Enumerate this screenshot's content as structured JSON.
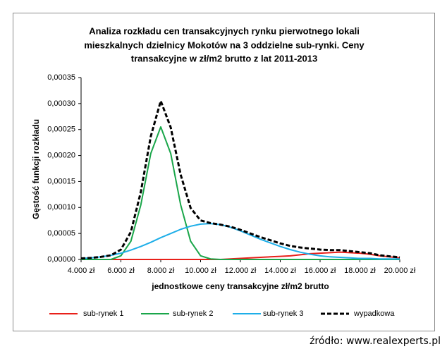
{
  "chart_data": {
    "type": "line",
    "title": [
      "Analiza rozkładu cen transakcyjnych  rynku pierwotnego lokali",
      "mieszkalnych dzielnicy Mokotów na 3 oddzielne sub-rynki. Ceny",
      "transakcyjne  w zł/m2 brutto z lat 2011-2013"
    ],
    "x_label": "jednostkowe ceny transakcyjne zł/m2 brutto",
    "y_label": "Gęstość funkcji rozkładu",
    "x": [
      4000,
      4500,
      5000,
      5500,
      6000,
      6500,
      7000,
      7500,
      8000,
      8500,
      9000,
      9500,
      10000,
      10500,
      11000,
      11500,
      12000,
      12500,
      13000,
      13500,
      14000,
      14500,
      15000,
      15500,
      16000,
      16500,
      17000,
      17500,
      18000,
      18500,
      19000,
      19500,
      20000
    ],
    "series": [
      {
        "name": "sub-rynek 1",
        "color": "#e8201a",
        "dashed": false,
        "values": [
          0,
          0,
          0,
          0,
          0,
          0,
          0,
          0,
          0,
          0,
          0,
          0,
          0,
          0,
          0,
          1e-06,
          2e-06,
          3e-06,
          4e-06,
          5e-06,
          6e-06,
          7e-06,
          9e-06,
          1.1e-05,
          1.2e-05,
          1.3e-05,
          1.4e-05,
          1.3e-05,
          1.2e-05,
          1e-05,
          7e-06,
          5e-06,
          3e-06
        ]
      },
      {
        "name": "sub-rynek 2",
        "color": "#1aa64a",
        "dashed": false,
        "values": [
          0,
          0,
          0,
          0,
          7e-06,
          3.5e-05,
          0.000105,
          0.000204,
          0.000255,
          0.000204,
          0.000105,
          3.5e-05,
          7e-06,
          1e-06,
          0,
          0,
          0,
          0,
          0,
          0,
          0,
          0,
          0,
          0,
          0,
          0,
          0,
          0,
          0,
          0,
          0,
          0,
          0
        ]
      },
      {
        "name": "sub-rynek 3",
        "color": "#1eaee8",
        "dashed": false,
        "values": [
          2e-06,
          3e-06,
          5e-06,
          8e-06,
          1.2e-05,
          1.8e-05,
          2.5e-05,
          3.3e-05,
          4.2e-05,
          5e-05,
          5.8e-05,
          6.4e-05,
          6.8e-05,
          6.9e-05,
          6.7e-05,
          6.2e-05,
          5.5e-05,
          4.7e-05,
          3.9e-05,
          3.2e-05,
          2.5e-05,
          1.9e-05,
          1.4e-05,
          1e-05,
          7e-06,
          5e-06,
          4e-06,
          3e-06,
          2e-06,
          2e-06,
          1e-06,
          1e-06,
          1e-06
        ]
      },
      {
        "name": "wypadkowa",
        "color": "#000000",
        "dashed": true,
        "values": [
          2e-06,
          3e-06,
          5e-06,
          8e-06,
          1.9e-05,
          5.3e-05,
          0.00013,
          0.000237,
          0.000305,
          0.000254,
          0.000163,
          9.9e-05,
          7.5e-05,
          7e-05,
          6.7e-05,
          6.3e-05,
          5.7e-05,
          5e-05,
          4.3e-05,
          3.7e-05,
          3.1e-05,
          2.6e-05,
          2.3e-05,
          2.1e-05,
          1.9e-05,
          1.8e-05,
          1.8e-05,
          1.6e-05,
          1.4e-05,
          1.2e-05,
          8e-06,
          6e-06,
          4e-06
        ]
      }
    ],
    "xlim": [
      4000,
      20000
    ],
    "xticks": [
      {
        "value": 4000,
        "label": "4.000 zł"
      },
      {
        "value": 6000,
        "label": "6.000 zł"
      },
      {
        "value": 8000,
        "label": "8.000 zł"
      },
      {
        "value": 10000,
        "label": "10.000 zł"
      },
      {
        "value": 12000,
        "label": "12.000 zł"
      },
      {
        "value": 14000,
        "label": "14.000 zł"
      },
      {
        "value": 16000,
        "label": "16.000 zł"
      },
      {
        "value": 18000,
        "label": "18.000 zł"
      },
      {
        "value": 20000,
        "label": "20.000 zł"
      }
    ],
    "ylim": [
      0,
      0.00035
    ],
    "yticks": [
      {
        "value": 0,
        "label": "0,00000"
      },
      {
        "value": 5e-05,
        "label": "0,00005"
      },
      {
        "value": 0.0001,
        "label": "0,00010"
      },
      {
        "value": 0.00015,
        "label": "0,00015"
      },
      {
        "value": 0.0002,
        "label": "0,00020"
      },
      {
        "value": 0.00025,
        "label": "0,00025"
      },
      {
        "value": 0.0003,
        "label": "0,00030"
      },
      {
        "value": 0.00035,
        "label": "0,00035"
      }
    ],
    "grid": false,
    "legend": "bottom"
  },
  "source": "źródło: www.realexperts.pl"
}
